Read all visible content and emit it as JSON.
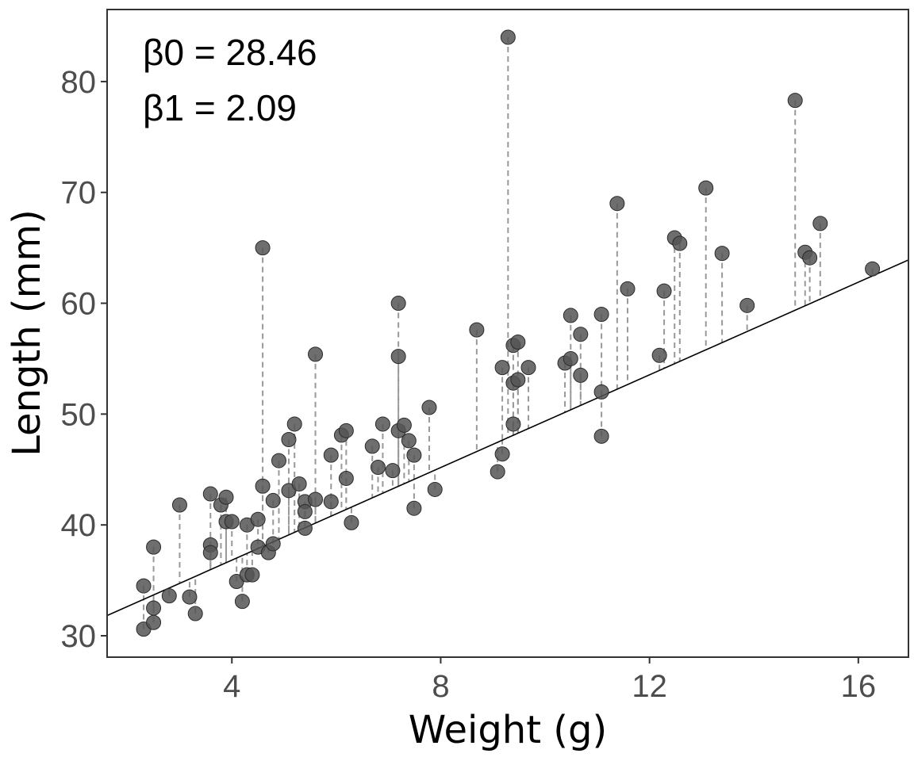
{
  "chart_data": {
    "type": "scatter",
    "title": "",
    "xlabel": "Weight (g)",
    "ylabel": "Length (mm)",
    "xlim": [
      1.61,
      16.96
    ],
    "ylim": [
      28.07,
      86.5
    ],
    "xticks": [
      4,
      8,
      12,
      16
    ],
    "yticks": [
      30,
      40,
      50,
      60,
      70,
      80
    ],
    "grid": false,
    "legend": "none",
    "annotations": [
      "β0 = 28.46",
      "β1 = 2.09"
    ],
    "regression": {
      "intercept": 28.46,
      "slope": 2.09,
      "residual_lines": "dashed"
    },
    "colors": {
      "point_fill": "#555555",
      "point_stroke": "#2b2b2b",
      "line": "#000000",
      "residual": "#999999",
      "frame": "#333333"
    },
    "points": [
      [
        2.31,
        34.5
      ],
      [
        2.31,
        30.6
      ],
      [
        2.5,
        32.5
      ],
      [
        2.5,
        31.2
      ],
      [
        2.5,
        38.0
      ],
      [
        2.8,
        33.6
      ],
      [
        3.0,
        41.8
      ],
      [
        3.19,
        33.5
      ],
      [
        3.3,
        32.0
      ],
      [
        3.59,
        42.8
      ],
      [
        3.59,
        38.2
      ],
      [
        3.59,
        37.5
      ],
      [
        3.79,
        41.8
      ],
      [
        3.89,
        42.5
      ],
      [
        3.89,
        40.3
      ],
      [
        4.0,
        40.3
      ],
      [
        4.09,
        34.9
      ],
      [
        4.2,
        33.1
      ],
      [
        4.29,
        35.5
      ],
      [
        4.29,
        40.0
      ],
      [
        4.39,
        35.5
      ],
      [
        4.5,
        40.5
      ],
      [
        4.5,
        38.0
      ],
      [
        4.59,
        65.0
      ],
      [
        4.59,
        43.5
      ],
      [
        4.7,
        37.5
      ],
      [
        4.79,
        38.3
      ],
      [
        4.79,
        42.2
      ],
      [
        4.9,
        45.8
      ],
      [
        5.09,
        47.7
      ],
      [
        5.09,
        43.1
      ],
      [
        5.2,
        49.1
      ],
      [
        5.29,
        43.7
      ],
      [
        5.4,
        42.1
      ],
      [
        5.4,
        41.2
      ],
      [
        5.4,
        39.7
      ],
      [
        5.6,
        55.4
      ],
      [
        5.6,
        42.3
      ],
      [
        5.9,
        46.3
      ],
      [
        5.9,
        42.1
      ],
      [
        6.1,
        48.1
      ],
      [
        6.19,
        48.5
      ],
      [
        6.19,
        44.2
      ],
      [
        6.29,
        40.2
      ],
      [
        6.69,
        47.1
      ],
      [
        6.8,
        45.2
      ],
      [
        6.89,
        49.1
      ],
      [
        7.08,
        44.9
      ],
      [
        7.19,
        60.0
      ],
      [
        7.19,
        55.2
      ],
      [
        7.19,
        48.5
      ],
      [
        7.3,
        49.0
      ],
      [
        7.39,
        47.6
      ],
      [
        7.49,
        46.3
      ],
      [
        7.49,
        41.5
      ],
      [
        7.78,
        50.6
      ],
      [
        7.89,
        43.2
      ],
      [
        8.69,
        57.6
      ],
      [
        9.09,
        44.8
      ],
      [
        9.18,
        46.4
      ],
      [
        9.18,
        54.2
      ],
      [
        9.29,
        84.0
      ],
      [
        9.39,
        56.2
      ],
      [
        9.39,
        52.8
      ],
      [
        9.39,
        49.1
      ],
      [
        9.48,
        56.5
      ],
      [
        9.48,
        53.1
      ],
      [
        9.68,
        54.2
      ],
      [
        10.38,
        54.6
      ],
      [
        10.49,
        58.9
      ],
      [
        10.49,
        55.0
      ],
      [
        10.68,
        57.2
      ],
      [
        10.68,
        53.5
      ],
      [
        11.08,
        59.0
      ],
      [
        11.08,
        52.0
      ],
      [
        11.08,
        48.0
      ],
      [
        11.38,
        69.0
      ],
      [
        11.58,
        61.3
      ],
      [
        12.19,
        55.3
      ],
      [
        12.28,
        61.1
      ],
      [
        12.48,
        65.9
      ],
      [
        12.58,
        65.4
      ],
      [
        13.08,
        70.4
      ],
      [
        13.39,
        64.5
      ],
      [
        13.87,
        59.8
      ],
      [
        14.79,
        78.3
      ],
      [
        14.98,
        64.6
      ],
      [
        15.07,
        64.1
      ],
      [
        15.27,
        67.2
      ],
      [
        16.27,
        63.1
      ]
    ]
  }
}
